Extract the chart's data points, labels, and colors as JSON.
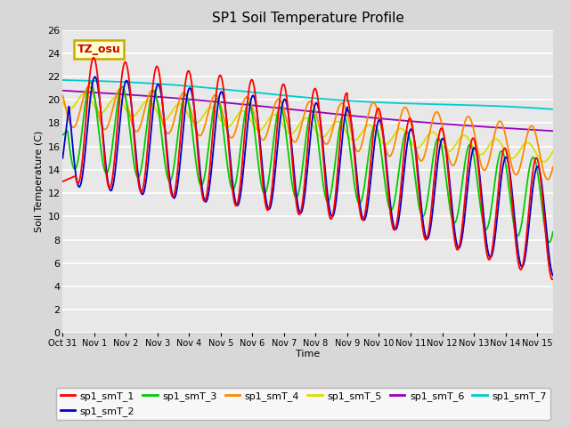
{
  "title": "SP1 Soil Temperature Profile",
  "xlabel": "Time",
  "ylabel": "Soil Temperature (C)",
  "annotation": "TZ_osu",
  "ylim": [
    0,
    26
  ],
  "yticks": [
    0,
    2,
    4,
    6,
    8,
    10,
    12,
    14,
    16,
    18,
    20,
    22,
    24,
    26
  ],
  "xtick_labels": [
    "Oct 31",
    "Nov 1",
    "Nov 2",
    "Nov 3",
    "Nov 4",
    "Nov 5",
    "Nov 6",
    "Nov 7",
    "Nov 8",
    "Nov 9",
    "Nov 10",
    "Nov 11",
    "Nov 12",
    "Nov 13",
    "Nov 14",
    "Nov 15"
  ],
  "colors": {
    "sp1_smT_1": "#ff0000",
    "sp1_smT_2": "#0000cc",
    "sp1_smT_3": "#00cc00",
    "sp1_smT_4": "#ff8800",
    "sp1_smT_5": "#dddd00",
    "sp1_smT_6": "#9900bb",
    "sp1_smT_7": "#00cccc"
  },
  "fig_bg": "#d8d8d8",
  "plot_bg": "#e8e8e8",
  "legend_bg": "#ffffcc",
  "legend_edge": "#ccaa00",
  "annotation_color": "#cc0000"
}
